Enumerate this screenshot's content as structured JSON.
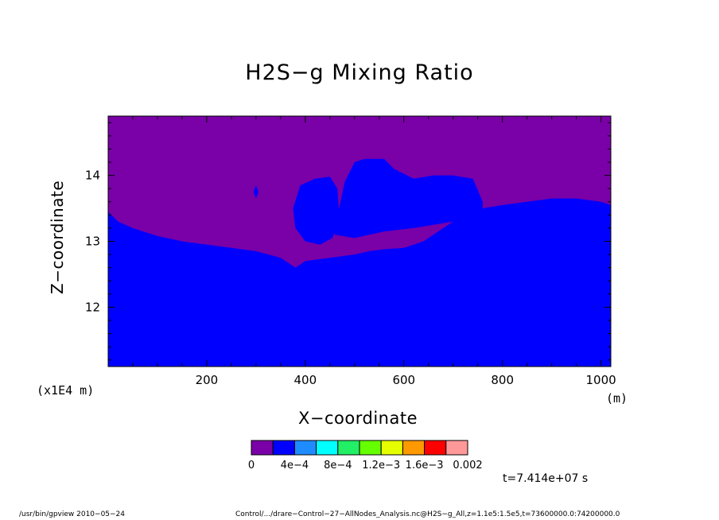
{
  "chart_data": {
    "type": "heatmap",
    "title": "H2S−g Mixing Ratio",
    "xlabel": "X−coordinate",
    "ylabel": "Z−coordinate",
    "x_unit": "(m)",
    "y_unit": "(x1E4 m)",
    "xlim": [
      0,
      1020
    ],
    "ylim": [
      11.1,
      14.9
    ],
    "x_ticks": [
      200,
      400,
      600,
      800,
      1000
    ],
    "x_tick_labels": [
      "200",
      "400",
      "600",
      "800",
      "1000"
    ],
    "y_ticks": [
      12,
      13,
      14
    ],
    "y_tick_labels": [
      "12",
      "13",
      "14"
    ],
    "colorbar": {
      "colors": [
        "#7a00a8",
        "#0000ff",
        "#1e8cff",
        "#00ffff",
        "#22ee66",
        "#66ff00",
        "#e6ff00",
        "#ff9900",
        "#ff0000",
        "#ff9999"
      ],
      "labels": [
        "0",
        "4e−4",
        "8e−4",
        "1.2e−3",
        "1.6e−3",
        "0.002"
      ],
      "label_positions": [
        0,
        2,
        4,
        6,
        8,
        10
      ]
    },
    "regions": {
      "above_boundary_color": "#7a00a8",
      "below_boundary_color": "#0000ff",
      "boundary_x": [
        0,
        20,
        50,
        100,
        150,
        200,
        250,
        300,
        350,
        380,
        400,
        450,
        500,
        530,
        560,
        600,
        640,
        680,
        720,
        760,
        800,
        850,
        900,
        950,
        1000,
        1020
      ],
      "boundary_z": [
        13.45,
        13.3,
        13.2,
        13.08,
        13.0,
        12.95,
        12.9,
        12.85,
        12.75,
        12.6,
        12.7,
        12.75,
        12.8,
        12.85,
        12.88,
        12.9,
        13.0,
        13.2,
        13.4,
        13.5,
        13.55,
        13.6,
        13.65,
        13.65,
        13.6,
        13.55
      ],
      "blue_patches": [
        {
          "x": [
            375,
            390,
            420,
            450,
            465,
            470,
            455,
            430,
            400,
            380
          ],
          "z": [
            13.5,
            13.85,
            13.95,
            13.98,
            13.8,
            13.3,
            13.05,
            12.95,
            13.0,
            13.2
          ]
        },
        {
          "x": [
            460,
            480,
            500,
            520,
            560,
            580,
            620,
            660,
            700,
            740,
            760,
            760,
            700,
            620,
            560,
            500,
            460
          ],
          "z": [
            13.2,
            13.9,
            14.2,
            14.25,
            14.25,
            14.1,
            13.95,
            14.0,
            14.0,
            13.95,
            13.6,
            13.4,
            13.3,
            13.2,
            13.15,
            13.05,
            13.1
          ]
        },
        {
          "x": [
            295,
            300,
            305,
            300
          ],
          "z": [
            13.75,
            13.85,
            13.75,
            13.65
          ]
        }
      ]
    }
  },
  "annotations": {
    "timestamp": "t=7.414e+07 s",
    "footer_left": "/usr/bin/gpview   2010−05−24",
    "footer_right": "Control/.../drare−Control−27−AllNodes_Analysis.nc@H2S−g_All,z=1.1e5:1.5e5,t=73600000.0:74200000.0"
  }
}
